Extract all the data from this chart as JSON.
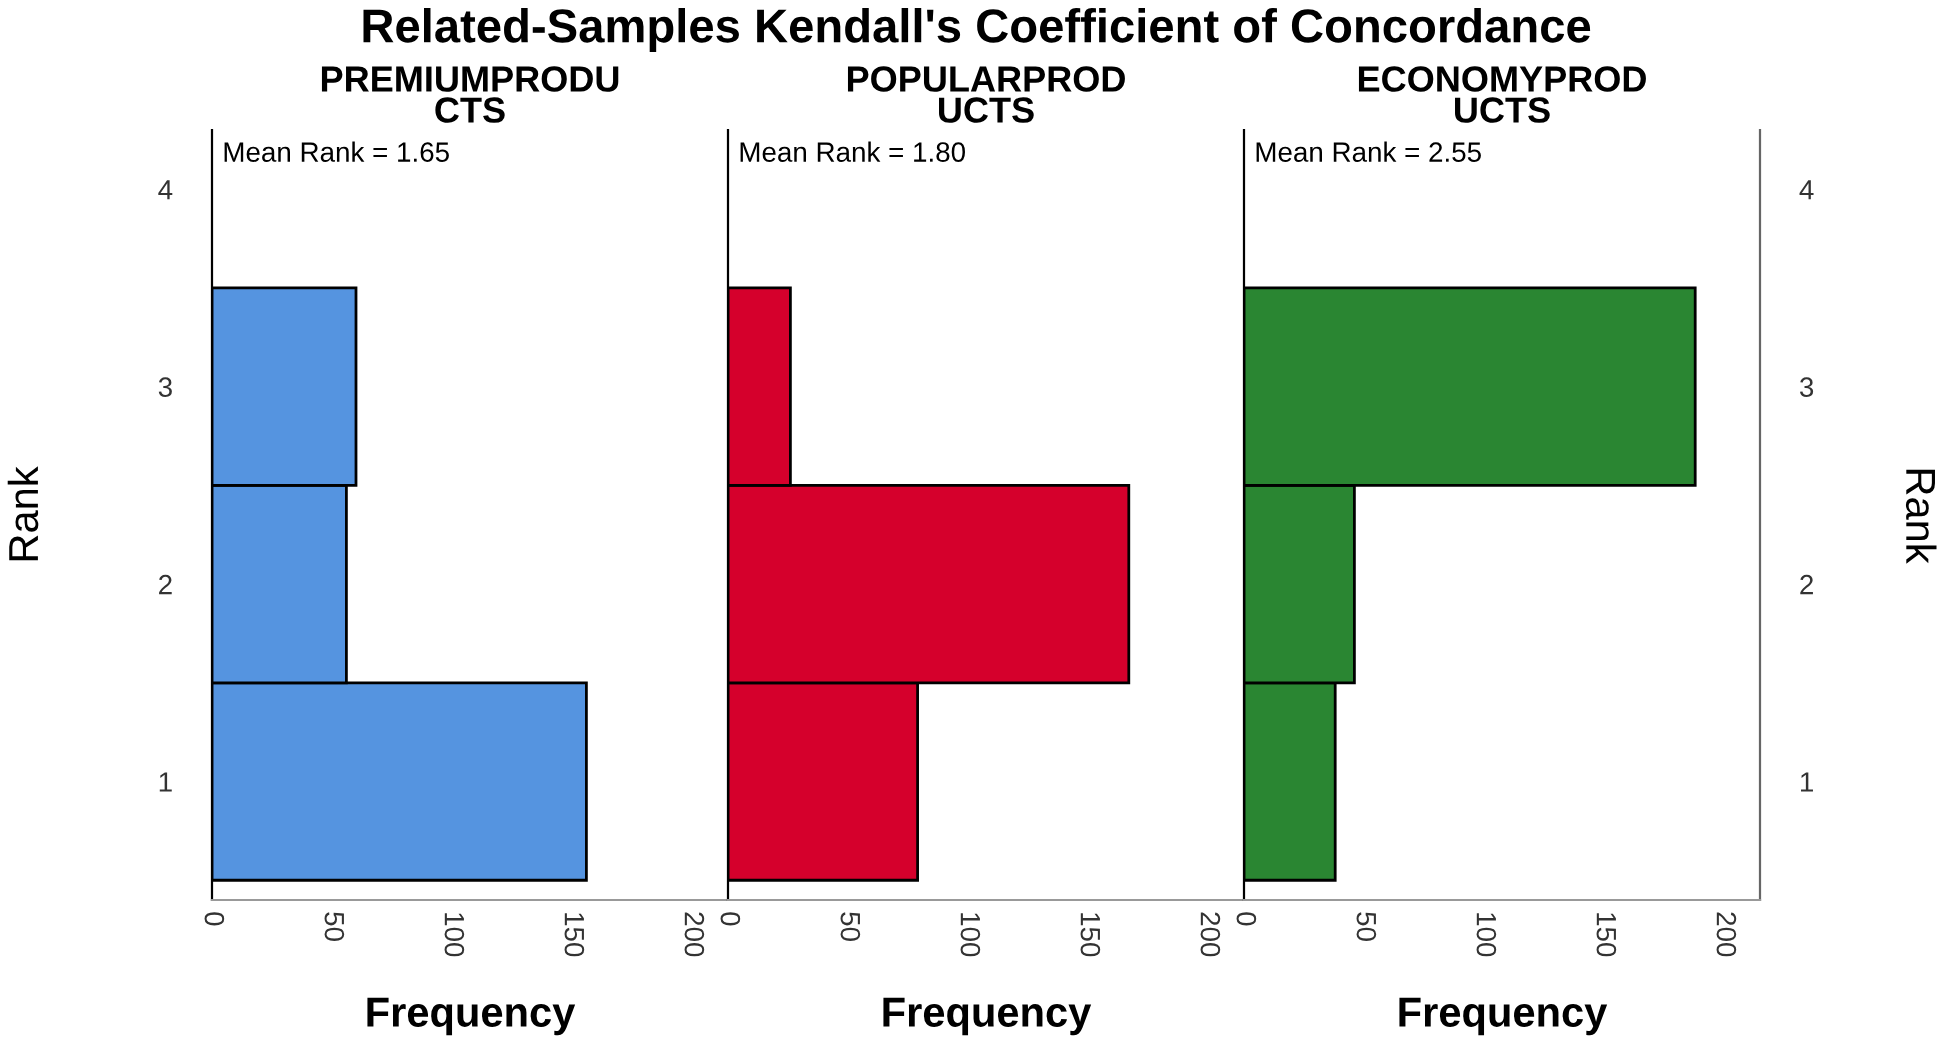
{
  "chart_data": [
    {
      "type": "histogram",
      "orientation": "horizontal",
      "title": "Related-Samples Kendall's Coefficient of Concordance",
      "subtitle": "PREMIUMPRODU\nCTS",
      "xlabel": "Frequency",
      "ylabel": "Rank",
      "bins": [
        0.5,
        1.5,
        2.5,
        3.5
      ],
      "values": [
        156,
        56,
        60
      ],
      "color": "#5594e0",
      "xlim": [
        0,
        215
      ],
      "xticks": [
        0,
        50,
        100,
        150,
        200
      ],
      "ylim": [
        0.4,
        4.3
      ],
      "yticks": [
        1,
        2,
        3,
        4
      ],
      "annotations": [
        "Mean Rank = 1.65"
      ],
      "grid": false,
      "legend": false
    },
    {
      "type": "histogram",
      "orientation": "horizontal",
      "subtitle": "POPULARPROD\nUCTS",
      "xlabel": "Frequency",
      "bins": [
        0.5,
        1.5,
        2.5,
        3.5
      ],
      "values": [
        79,
        167,
        26
      ],
      "color": "#d5002c",
      "xlim": [
        0,
        215
      ],
      "xticks": [
        0,
        50,
        100,
        150,
        200
      ],
      "ylim": [
        0.4,
        4.3
      ],
      "tick_labels": "x",
      "annotations": [
        "Mean Rank = 1.80"
      ],
      "grid": false,
      "legend": false
    },
    {
      "type": "histogram",
      "orientation": "horizontal",
      "subtitle": "ECONOMYPROD\nUCTS",
      "xlabel": "Frequency",
      "ylabel": "Rank",
      "bins": [
        0.5,
        1.5,
        2.5,
        3.5
      ],
      "values": [
        38,
        46,
        188
      ],
      "color": "#2a8632",
      "xlim": [
        0,
        215
      ],
      "xticks": [
        0,
        50,
        100,
        150,
        200
      ],
      "ylim": [
        0.4,
        4.3
      ],
      "yticks": [
        1,
        2,
        3,
        4
      ],
      "annotations": [
        "Mean Rank = 2.55"
      ],
      "grid": false,
      "legend": false
    }
  ]
}
